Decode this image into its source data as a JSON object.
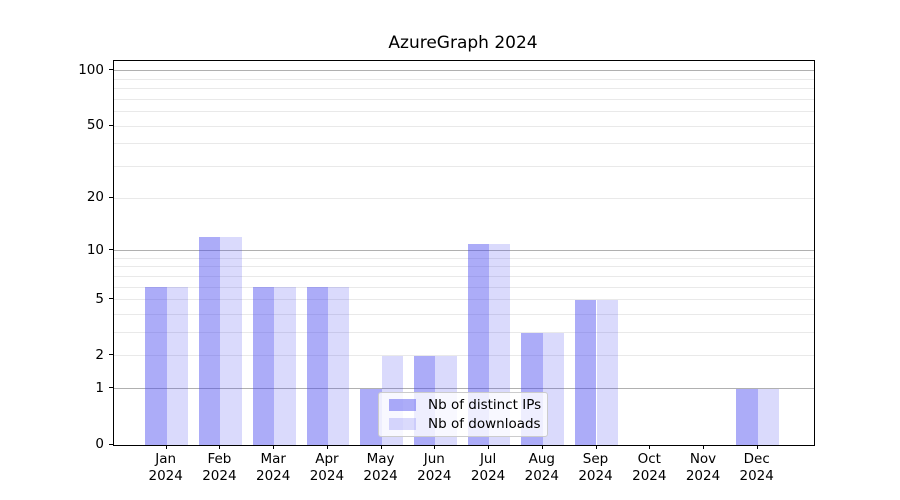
{
  "chart_data": {
    "type": "bar",
    "title": "AzureGraph 2024",
    "categories": [
      "Jan",
      "Feb",
      "Mar",
      "Apr",
      "May",
      "Jun",
      "Jul",
      "Aug",
      "Sep",
      "Oct",
      "Nov",
      "Dec"
    ],
    "category_year": "2024",
    "series": [
      {
        "name": "Nb of distinct IPs",
        "color": "rgba(70,70,240,0.45)",
        "values": [
          6,
          12,
          6,
          6,
          1,
          2,
          11,
          3,
          5,
          0,
          0,
          1
        ]
      },
      {
        "name": "Nb of downloads",
        "color": "rgba(70,70,240,0.20)",
        "values": [
          6,
          12,
          6,
          6,
          2,
          2,
          11,
          3,
          5,
          0,
          0,
          1
        ]
      }
    ],
    "xlabel": "",
    "ylabel": "",
    "yscale": "log1p",
    "ylim": [
      0,
      113
    ],
    "y_ticks": [
      0,
      1,
      2,
      5,
      10,
      20,
      50,
      100
    ],
    "y_major_gridlines": [
      1,
      10,
      100
    ],
    "y_minor_gridlines": [
      2,
      3,
      4,
      5,
      6,
      7,
      8,
      9,
      20,
      30,
      40,
      50,
      60,
      70,
      80,
      90
    ],
    "grid": "on",
    "legend_position": "lower center-left inside plot",
    "colors": {
      "major_grid": "#b0b0b0",
      "minor_grid": "#e9e9e9",
      "axis": "#000000",
      "background": "#ffffff"
    }
  }
}
